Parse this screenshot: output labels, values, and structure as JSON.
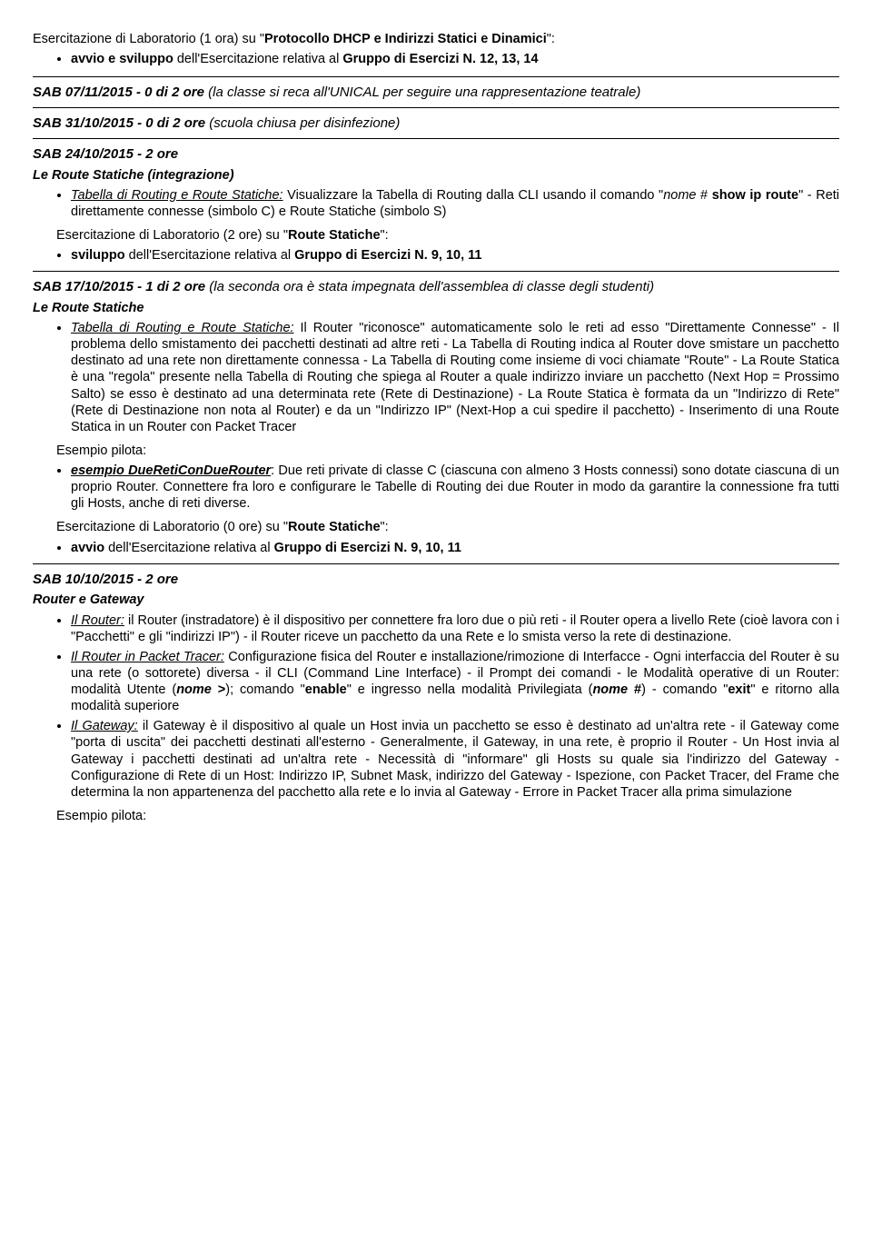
{
  "block1": {
    "intro_prefix": "Esercitazione di Laboratorio (1 ora) su \"",
    "intro_bold": "Protocollo DHCP e Indirizzi Statici e Dinamici",
    "intro_suffix": "\":",
    "bullet_prefix": "avvio e sviluppo",
    "bullet_mid": " dell'Esercitazione relativa al ",
    "bullet_bold": "Gruppo di Esercizi N. 12, 13, 14"
  },
  "sab0711": {
    "label": "SAB 07/11/2015 - 0 di 2 ore ",
    "detail": "(la classe si reca all'UNICAL per seguire una rappresentazione teatrale)"
  },
  "sab3110": {
    "label": "SAB 31/10/2015 - 0 di 2 ore ",
    "detail": "(scuola chiusa per disinfezione)"
  },
  "sab2410": {
    "label": "SAB 24/10/2015 - 2 ore",
    "subtitle": "Le Route Statiche (integrazione)",
    "b1_u": "Tabella di Routing e Route Statiche:",
    "b1_a": " Visualizzare la Tabella di Routing dalla CLI usando il comando \"",
    "b1_i1": "nome",
    "b1_b": " # ",
    "b1_bold1": "show ip route",
    "b1_c": "\" - Reti direttamente connesse (simbolo C) e Route Statiche (simbolo S)",
    "lab_prefix": "Esercitazione di Laboratorio (2 ore) su \"",
    "lab_bold": "Route Statiche",
    "lab_suffix": "\":",
    "lab_bullet_prefix": "sviluppo",
    "lab_bullet_mid": " dell'Esercitazione relativa al ",
    "lab_bullet_bold": "Gruppo di Esercizi N. 9, 10, 11"
  },
  "sab1710": {
    "label": "SAB 17/10/2015 - 1 di 2 ore  ",
    "detail": "(la seconda ora è stata impegnata dell'assemblea di classe degli studenti)",
    "subtitle": "Le Route Statiche",
    "b1_u": "Tabella di Routing e Route Statiche:",
    "b1_text": " Il Router \"riconosce\" automaticamente solo le reti ad esso \"Direttamente Connesse\" - Il problema dello smistamento dei pacchetti destinati ad altre reti - La Tabella di Routing indica al Router dove smistare un pacchetto destinato ad una rete non direttamente connessa - La Tabella di Routing come insieme di voci chiamate \"Route\" - La Route Statica è una \"regola\" presente nella Tabella di Routing che spiega al Router a quale indirizzo inviare un pacchetto (Next Hop = Prossimo Salto) se esso è destinato ad una determinata rete (Rete di Destinazione) - La Route Statica è formata da un \"Indirizzo di Rete\" (Rete di Destinazione non nota al Router) e da un \"Indirizzo IP\" (Next-Hop a cui spedire il pacchetto) - Inserimento di una Route Statica in un Router con Packet Tracer",
    "esempio": "Esempio pilota:",
    "ex_bold": "esempio DueRetiConDueRouter",
    "ex_text": ": Due reti private di classe C (ciascuna con almeno 3 Hosts connessi) sono dotate ciascuna di un proprio Router. Connettere fra loro e configurare le Tabelle di Routing dei due Router in modo da garantire la connessione fra tutti gli Hosts, anche di reti diverse.",
    "lab_prefix": "Esercitazione di Laboratorio (0 ore) su \"",
    "lab_bold": "Route Statiche",
    "lab_suffix": "\":",
    "lab_bullet_prefix": "avvio",
    "lab_bullet_mid": " dell'Esercitazione relativa al ",
    "lab_bullet_bold": "Gruppo di Esercizi N. 9, 10, 11"
  },
  "sab1010": {
    "label": "SAB 10/10/2015 - 2 ore",
    "subtitle": "Router e Gateway",
    "b1_u": "Il Router:",
    "b1_text": " il Router (instradatore) è il dispositivo per connettere fra loro due o più reti - il Router opera a livello Rete (cioè lavora con i \"Pacchetti\" e gli \"indirizzi IP\") - il Router riceve un pacchetto da una Rete e lo smista verso la rete di destinazione.",
    "b2_u": "Il Router in Packet Tracer:",
    "b2_a": " Configurazione fisica del Router e installazione/rimozione di Interfacce - Ogni interfaccia del Router è su una rete (o sottorete) diversa - il CLI (Command Line Interface) - il Prompt dei comandi - le Modalità operative di un Router: modalità Utente (",
    "b2_i1": "nome ",
    "b2_bold1": ">",
    "b2_b": "); comando \"",
    "b2_bold2": "enable",
    "b2_c": "\" e ingresso nella modalità Privilegiata (",
    "b2_i2": "nome ",
    "b2_bold3": "#",
    "b2_d": ") - comando \"",
    "b2_bold4": "exit",
    "b2_e": "\" e ritorno alla modalità superiore",
    "b3_u": "Il Gateway:",
    "b3_text": "  il Gateway è il dispositivo al quale un Host invia un pacchetto se esso è destinato ad un'altra rete - il Gateway come \"porta di uscita\" dei pacchetti destinati all'esterno - Generalmente, il Gateway, in una rete, è proprio il Router - Un Host invia al Gateway i pacchetti destinati ad un'altra rete - Necessità di \"informare\" gli Hosts su quale sia l'indirizzo del Gateway - Configurazione di Rete di un Host: Indirizzo IP, Subnet Mask, indirizzo del Gateway - Ispezione, con Packet Tracer, del Frame che determina la non appartenenza del pacchetto alla rete e lo invia al Gateway - Errore in Packet Tracer alla prima simulazione",
    "esempio": "Esempio pilota:"
  }
}
